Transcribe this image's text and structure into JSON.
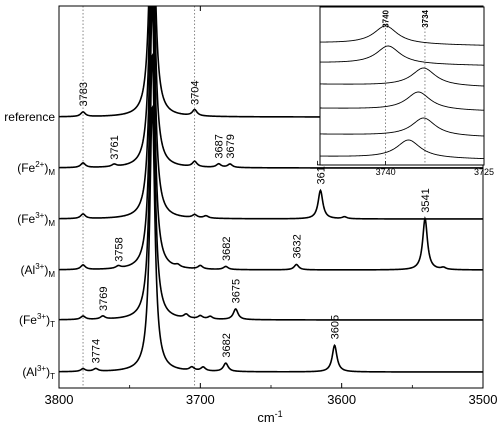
{
  "chart_data": {
    "type": "line",
    "title": "",
    "xlabel": "cm",
    "xlabel_sup": "-1",
    "ylabel": "",
    "xlim": [
      3800,
      3500
    ],
    "xticks": [
      "3800",
      "3700",
      "3600",
      "3500"
    ],
    "reference_lines": [
      3783,
      3704
    ],
    "main_peak": 3734,
    "rows": [
      {
        "label": "reference",
        "sub": "",
        "peaks": [
          {
            "x": 3783,
            "h": 0.12,
            "text": "3783"
          },
          {
            "x": 3704,
            "h": 0.16,
            "text": "3704"
          }
        ]
      },
      {
        "label": "(Fe",
        "sup": "2+",
        "close": ")",
        "sub": "M",
        "peaks": [
          {
            "x": 3783,
            "h": 0.12,
            "text": ""
          },
          {
            "x": 3761,
            "h": 0.06,
            "text": "3761"
          },
          {
            "x": 3704,
            "h": 0.14,
            "text": ""
          },
          {
            "x": 3687,
            "h": 0.09,
            "text": "3687"
          },
          {
            "x": 3679,
            "h": 0.09,
            "text": "3679"
          }
        ]
      },
      {
        "label": "(Fe",
        "sup": "3+",
        "close": ")",
        "sub": "M",
        "peaks": [
          {
            "x": 3783,
            "h": 0.12,
            "text": ""
          },
          {
            "x": 3704,
            "h": 0.08,
            "text": ""
          },
          {
            "x": 3696,
            "h": 0.06,
            "text": ""
          },
          {
            "x": 3615,
            "h": 0.75,
            "text": "3615"
          },
          {
            "x": 3598,
            "h": 0.05,
            "text": ""
          }
        ]
      },
      {
        "label": "(Al",
        "sup": "3+",
        "close": ")",
        "sub": "M",
        "peaks": [
          {
            "x": 3783,
            "h": 0.12,
            "text": ""
          },
          {
            "x": 3758,
            "h": 0.06,
            "text": "3758"
          },
          {
            "x": 3716,
            "h": 0.06,
            "text": ""
          },
          {
            "x": 3700,
            "h": 0.09,
            "text": ""
          },
          {
            "x": 3682,
            "h": 0.08,
            "text": "3682"
          },
          {
            "x": 3632,
            "h": 0.14,
            "text": "3632"
          },
          {
            "x": 3541,
            "h": 1.35,
            "text": "3541"
          },
          {
            "x": 3528,
            "h": 0.05,
            "text": ""
          }
        ]
      },
      {
        "label": "(Fe",
        "sup": "3+",
        "close": ")",
        "sub": "T",
        "peaks": [
          {
            "x": 3783,
            "h": 0.09,
            "text": ""
          },
          {
            "x": 3769,
            "h": 0.08,
            "text": "3769"
          },
          {
            "x": 3710,
            "h": 0.1,
            "text": ""
          },
          {
            "x": 3700,
            "h": 0.08,
            "text": ""
          },
          {
            "x": 3693,
            "h": 0.07,
            "text": ""
          },
          {
            "x": 3675,
            "h": 0.28,
            "text": "3675"
          }
        ]
      },
      {
        "label": "(Al",
        "sup": "3+",
        "close": ")",
        "sub": "T",
        "peaks": [
          {
            "x": 3783,
            "h": 0.07,
            "text": ""
          },
          {
            "x": 3774,
            "h": 0.07,
            "text": "3774"
          },
          {
            "x": 3706,
            "h": 0.09,
            "text": ""
          },
          {
            "x": 3698,
            "h": 0.1,
            "text": ""
          },
          {
            "x": 3682,
            "h": 0.22,
            "text": "3682"
          },
          {
            "x": 3605,
            "h": 0.7,
            "text": "3605"
          }
        ]
      }
    ],
    "inset": {
      "xlim": [
        3750,
        3725
      ],
      "xticks": [
        "3740",
        "3725"
      ],
      "reference_lines": [
        {
          "x": 3740,
          "text": "3740"
        },
        {
          "x": 3734,
          "text": "3734"
        }
      ],
      "band_centers": [
        3740,
        3739.6,
        3734.2,
        3735,
        3734.2,
        3736.5
      ]
    }
  }
}
